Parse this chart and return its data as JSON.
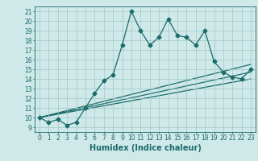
{
  "title": "",
  "xlabel": "Humidex (Indice chaleur)",
  "bg_color": "#cfe8e8",
  "line_color": "#1a6b6b",
  "grid_color": "#a0c8c8",
  "xlim": [
    -0.5,
    23.5
  ],
  "ylim": [
    8.5,
    21.5
  ],
  "xticks": [
    0,
    1,
    2,
    3,
    4,
    5,
    6,
    7,
    8,
    9,
    10,
    11,
    12,
    13,
    14,
    15,
    16,
    17,
    18,
    19,
    20,
    21,
    22,
    23
  ],
  "yticks": [
    9,
    10,
    11,
    12,
    13,
    14,
    15,
    16,
    17,
    18,
    19,
    20,
    21
  ],
  "main_x": [
    0,
    1,
    2,
    3,
    4,
    5,
    6,
    7,
    8,
    9,
    10,
    11,
    12,
    13,
    14,
    15,
    16,
    17,
    18,
    19,
    20,
    21,
    22,
    23
  ],
  "main_y": [
    10.0,
    9.5,
    9.8,
    9.2,
    9.5,
    11.0,
    12.5,
    13.8,
    14.4,
    17.5,
    21.0,
    19.0,
    17.5,
    18.3,
    20.2,
    18.5,
    18.3,
    17.5,
    19.0,
    15.8,
    14.7,
    14.2,
    14.0,
    15.0
  ],
  "line2_x": [
    0,
    23
  ],
  "line2_y": [
    10.0,
    15.5
  ],
  "line3_x": [
    0,
    23
  ],
  "line3_y": [
    10.0,
    14.7
  ],
  "line4_x": [
    0,
    23
  ],
  "line4_y": [
    10.0,
    14.0
  ],
  "marker": "D",
  "markersize": 2.5,
  "linewidth": 0.9,
  "xlabel_fontsize": 7,
  "tick_fontsize": 5.5
}
